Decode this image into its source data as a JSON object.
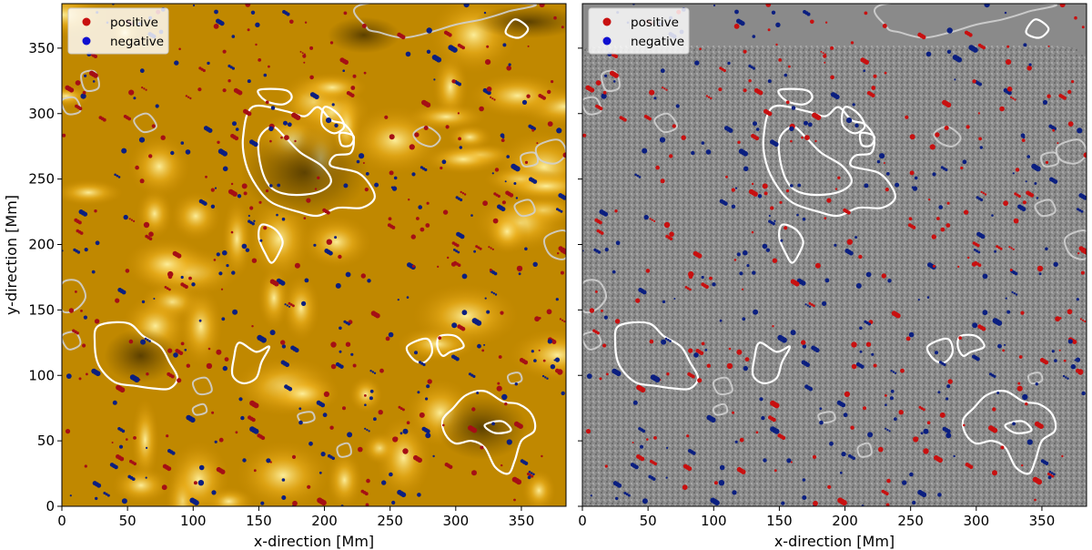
{
  "chart_data": [
    {
      "type": "scatter",
      "panel": "left",
      "background": "EUV intensity image (golden/orange colormap)",
      "xlabel": "x-direction [Mm]",
      "ylabel": "y-direction [Mm]",
      "xlim": [
        0,
        384
      ],
      "ylim": [
        0,
        384
      ],
      "xticks": [
        0,
        50,
        100,
        150,
        200,
        250,
        300,
        350
      ],
      "yticks": [
        0,
        50,
        100,
        150,
        200,
        250,
        300,
        350
      ],
      "legend": {
        "placement": "top-left",
        "entries": [
          "positive",
          "negative"
        ]
      },
      "series": [
        {
          "name": "positive",
          "color": "#a50f15",
          "marker": "circle",
          "note": "hundreds of small positive-polarity magnetic features scattered over the field of view"
        },
        {
          "name": "negative",
          "color": "#0b1f80",
          "marker": "circle",
          "note": "hundreds of small negative-polarity magnetic features scattered over the field of view"
        }
      ],
      "contours": [
        {
          "color": "#ffffff",
          "label": "coronal hole boundaries"
        },
        {
          "color": "#d8d8d8",
          "label": "faint contours"
        }
      ]
    },
    {
      "type": "scatter",
      "panel": "right",
      "background": "photospheric magnetogram (grayscale)",
      "xlabel": "x-direction [Mm]",
      "ylabel": "",
      "xlim": [
        0,
        384
      ],
      "ylim": [
        0,
        384
      ],
      "xticks": [
        0,
        50,
        100,
        150,
        200,
        250,
        300,
        350
      ],
      "yticks": [
        0,
        50,
        100,
        150,
        200,
        250,
        300,
        350
      ],
      "legend": {
        "placement": "top-left",
        "entries": [
          "positive",
          "negative"
        ]
      },
      "series": [
        {
          "name": "positive",
          "color": "#c81010",
          "marker": "circle"
        },
        {
          "name": "negative",
          "color": "#0b1f80",
          "marker": "circle"
        }
      ],
      "contours": [
        {
          "color": "#ffffff",
          "label": "coronal hole boundaries"
        },
        {
          "color": "#d8d8d8",
          "label": "faint contours"
        }
      ]
    }
  ],
  "colors": {
    "positive": "#c81010",
    "negative": "#1010d0",
    "contour_main": "#ffffff",
    "contour_faint": "#d0d0d0"
  }
}
